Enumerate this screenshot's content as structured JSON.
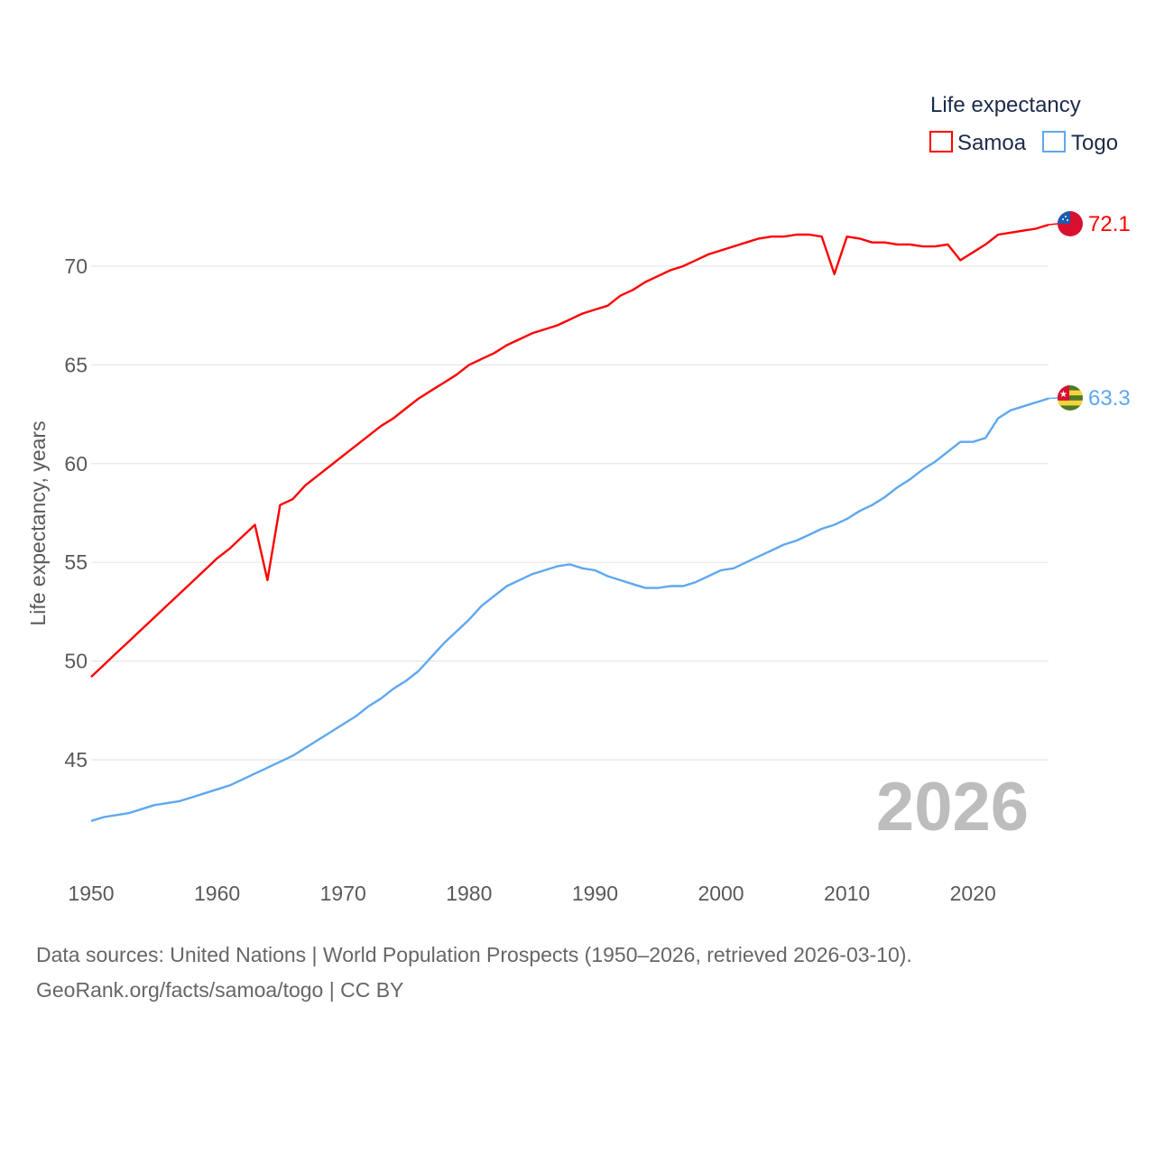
{
  "chart_data": {
    "type": "line",
    "title": "",
    "xlabel": "",
    "ylabel": "Life expectancy, years",
    "xlim": [
      1950,
      2026
    ],
    "ylim": [
      40.5,
      74
    ],
    "grid": true,
    "x_ticks": [
      "1950",
      "1960",
      "1970",
      "1980",
      "1990",
      "2000",
      "2010",
      "2020"
    ],
    "y_ticks": [
      "45",
      "50",
      "55",
      "60",
      "65",
      "70"
    ],
    "legend": {
      "title": "Life expectancy",
      "placement": "top-right",
      "entries": [
        "Samoa",
        "Togo"
      ]
    },
    "year_label": "2026",
    "x": [
      1950,
      1951,
      1952,
      1953,
      1954,
      1955,
      1956,
      1957,
      1958,
      1959,
      1960,
      1961,
      1962,
      1963,
      1964,
      1965,
      1966,
      1967,
      1968,
      1969,
      1970,
      1971,
      1972,
      1973,
      1974,
      1975,
      1976,
      1977,
      1978,
      1979,
      1980,
      1981,
      1982,
      1983,
      1984,
      1985,
      1986,
      1987,
      1988,
      1989,
      1990,
      1991,
      1992,
      1993,
      1994,
      1995,
      1996,
      1997,
      1998,
      1999,
      2000,
      2001,
      2002,
      2003,
      2004,
      2005,
      2006,
      2007,
      2008,
      2009,
      2010,
      2011,
      2012,
      2013,
      2014,
      2015,
      2016,
      2017,
      2018,
      2019,
      2020,
      2021,
      2022,
      2023,
      2024,
      2025,
      2026
    ],
    "series": [
      {
        "name": "Samoa",
        "color": "#ff0000",
        "end_label": "72.1",
        "values": [
          49.2,
          49.8,
          50.4,
          51.0,
          51.6,
          52.2,
          52.8,
          53.4,
          54.0,
          54.6,
          55.2,
          55.7,
          56.3,
          56.9,
          54.1,
          57.9,
          58.2,
          58.9,
          59.4,
          59.9,
          60.4,
          60.9,
          61.4,
          61.9,
          62.3,
          62.8,
          63.3,
          63.7,
          64.1,
          64.5,
          65.0,
          65.3,
          65.6,
          66.0,
          66.3,
          66.6,
          66.8,
          67.0,
          67.3,
          67.6,
          67.8,
          68.0,
          68.5,
          68.8,
          69.2,
          69.5,
          69.8,
          70.0,
          70.3,
          70.6,
          70.8,
          71.0,
          71.2,
          71.4,
          71.5,
          71.5,
          71.6,
          71.6,
          71.5,
          69.6,
          71.5,
          71.4,
          71.2,
          71.2,
          71.1,
          71.1,
          71.0,
          71.0,
          71.1,
          70.3,
          70.7,
          71.1,
          71.6,
          71.7,
          71.8,
          71.9,
          72.1
        ]
      },
      {
        "name": "Togo",
        "color": "#5ea8ee",
        "end_label": "63.3",
        "values": [
          41.9,
          42.1,
          42.2,
          42.3,
          42.5,
          42.7,
          42.8,
          42.9,
          43.1,
          43.3,
          43.5,
          43.7,
          44.0,
          44.3,
          44.6,
          44.9,
          45.2,
          45.6,
          46.0,
          46.4,
          46.8,
          47.2,
          47.7,
          48.1,
          48.6,
          49.0,
          49.5,
          50.2,
          50.9,
          51.5,
          52.1,
          52.8,
          53.3,
          53.8,
          54.1,
          54.4,
          54.6,
          54.8,
          54.9,
          54.7,
          54.6,
          54.3,
          54.1,
          53.9,
          53.7,
          53.7,
          53.8,
          53.8,
          54.0,
          54.3,
          54.6,
          54.7,
          55.0,
          55.3,
          55.6,
          55.9,
          56.1,
          56.4,
          56.7,
          56.9,
          57.2,
          57.6,
          57.9,
          58.3,
          58.8,
          59.2,
          59.7,
          60.1,
          60.6,
          61.1,
          61.1,
          61.3,
          62.3,
          62.7,
          62.9,
          63.1,
          63.3
        ]
      }
    ]
  },
  "footer": {
    "line1": "Data sources: United Nations | World Population Prospects (1950–2026, retrieved 2026-03-10).",
    "line2": "GeoRank.org/facts/samoa/togo | CC BY"
  }
}
